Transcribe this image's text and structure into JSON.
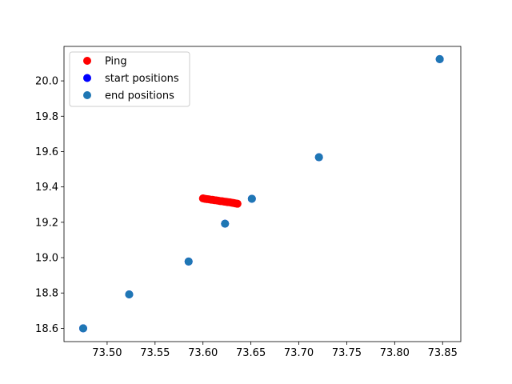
{
  "chart_data": {
    "type": "scatter",
    "xlim": [
      73.455,
      73.869
    ],
    "ylim": [
      18.525,
      20.195
    ],
    "x_ticks": [
      73.5,
      73.55,
      73.6,
      73.65,
      73.7,
      73.75,
      73.8,
      73.85
    ],
    "x_tick_labels": [
      "73.50",
      "73.55",
      "73.60",
      "73.65",
      "73.70",
      "73.75",
      "73.80",
      "73.85"
    ],
    "y_ticks": [
      18.6,
      18.8,
      19.0,
      19.2,
      19.4,
      19.6,
      19.8,
      20.0
    ],
    "y_tick_labels": [
      "18.6",
      "18.8",
      "19.0",
      "19.2",
      "19.4",
      "19.6",
      "19.8",
      "20.0"
    ],
    "legend_position": "upper-left",
    "grid": false,
    "series": [
      {
        "name": "Ping",
        "color": "#ff0000",
        "x": [
          73.6,
          73.602,
          73.604,
          73.606,
          73.608,
          73.61,
          73.612,
          73.614,
          73.616,
          73.618,
          73.62,
          73.622,
          73.624,
          73.626,
          73.628,
          73.63,
          73.632,
          73.634,
          73.636
        ],
        "y": [
          19.335,
          19.333,
          19.331,
          19.33,
          19.328,
          19.327,
          19.325,
          19.324,
          19.322,
          19.32,
          19.319,
          19.317,
          19.316,
          19.314,
          19.313,
          19.311,
          19.309,
          19.307,
          19.305
        ]
      },
      {
        "name": "start positions",
        "color": "#0000ff",
        "x": [
          73.475,
          73.523,
          73.585,
          73.623,
          73.651,
          73.721,
          73.847
        ],
        "y": [
          18.6,
          18.792,
          18.978,
          19.192,
          19.333,
          19.568,
          20.123
        ]
      },
      {
        "name": "end positions",
        "color": "#1f77b4",
        "x": [
          73.475,
          73.523,
          73.585,
          73.623,
          73.651,
          73.721,
          73.847
        ],
        "y": [
          18.6,
          18.792,
          18.978,
          19.192,
          19.333,
          19.568,
          20.123
        ]
      }
    ]
  }
}
